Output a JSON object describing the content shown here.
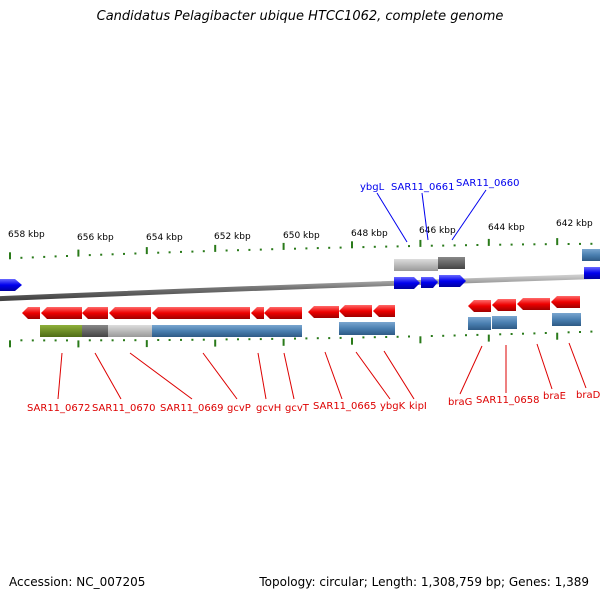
{
  "title": "Candidatus Pelagibacter ubique HTCC1062, complete genome",
  "footer": {
    "accession": "Accession: NC_007205",
    "stats": "Topology: circular; Length: 1,308,759 bp; Genes: 1,389"
  },
  "colors": {
    "forward_gene": "#0000ee",
    "reverse_gene": "#ee0000",
    "backbone": "#888888",
    "tick": "#2a7a1a",
    "domain_blue": "#4a7fb0",
    "domain_grey": "#aaaaaa",
    "domain_darkgrey": "#666666",
    "domain_green": "#6b8e23"
  },
  "scale_labels": [
    "658 kbp",
    "656 kbp",
    "654 kbp",
    "652 kbp",
    "650 kbp",
    "648 kbp",
    "646 kbp",
    "644 kbp",
    "642 kbp"
  ],
  "forward_labels": [
    "ybgL",
    "SAR11_0661",
    "SAR11_0660"
  ],
  "reverse_labels": [
    "SAR11_0672",
    "SAR11_0670",
    "SAR11_0669",
    "gcvP",
    "gcvH",
    "gcvT",
    "SAR11_0665",
    "ybgK",
    "kipI",
    "braG",
    "SAR11_0658",
    "braE",
    "braD"
  ]
}
